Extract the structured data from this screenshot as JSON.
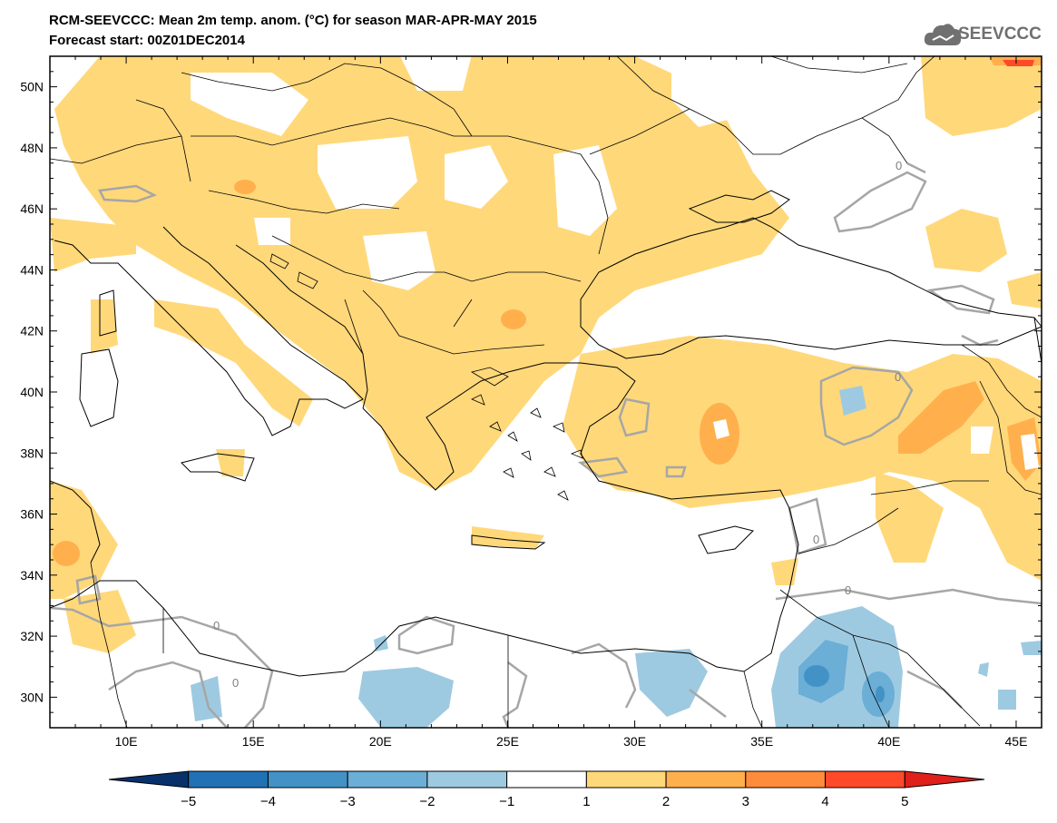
{
  "header": {
    "title_line1": "RCM-SEEVCCC: Mean 2m temp. anom. (°C) for season MAR-APR-MAY 2015",
    "title_line2": "Forecast start: 00Z01DEC2014",
    "logo_text": "SEEVCCC",
    "logo_icon": "cloud-icon"
  },
  "map": {
    "lon_range": [
      7,
      46
    ],
    "lat_range": [
      29,
      51
    ],
    "lon_ticks": [
      {
        "value": 10,
        "label": "10E"
      },
      {
        "value": 15,
        "label": "15E"
      },
      {
        "value": 20,
        "label": "20E"
      },
      {
        "value": 25,
        "label": "25E"
      },
      {
        "value": 30,
        "label": "30E"
      },
      {
        "value": 35,
        "label": "35E"
      },
      {
        "value": 40,
        "label": "40E"
      },
      {
        "value": 45,
        "label": "45E"
      }
    ],
    "lat_ticks": [
      {
        "value": 30,
        "label": "30N"
      },
      {
        "value": 32,
        "label": "32N"
      },
      {
        "value": 34,
        "label": "34N"
      },
      {
        "value": 36,
        "label": "36N"
      },
      {
        "value": 38,
        "label": "38N"
      },
      {
        "value": 40,
        "label": "40N"
      },
      {
        "value": 42,
        "label": "42N"
      },
      {
        "value": 44,
        "label": "44N"
      },
      {
        "value": 46,
        "label": "46N"
      },
      {
        "value": 48,
        "label": "48N"
      },
      {
        "value": 50,
        "label": "50N"
      }
    ],
    "contour_label": "0"
  },
  "colorbar": {
    "levels": [
      "-5",
      "-4",
      "-3",
      "-2",
      "-1",
      "1",
      "2",
      "3",
      "4",
      "5"
    ],
    "colors": [
      "#08306b",
      "#2171b5",
      "#4292c6",
      "#6baed6",
      "#9ecae1",
      "#ffffff",
      "#ffd87a",
      "#ffb04d",
      "#ff8c3a",
      "#ff4a2a",
      "#e0201a"
    ]
  }
}
